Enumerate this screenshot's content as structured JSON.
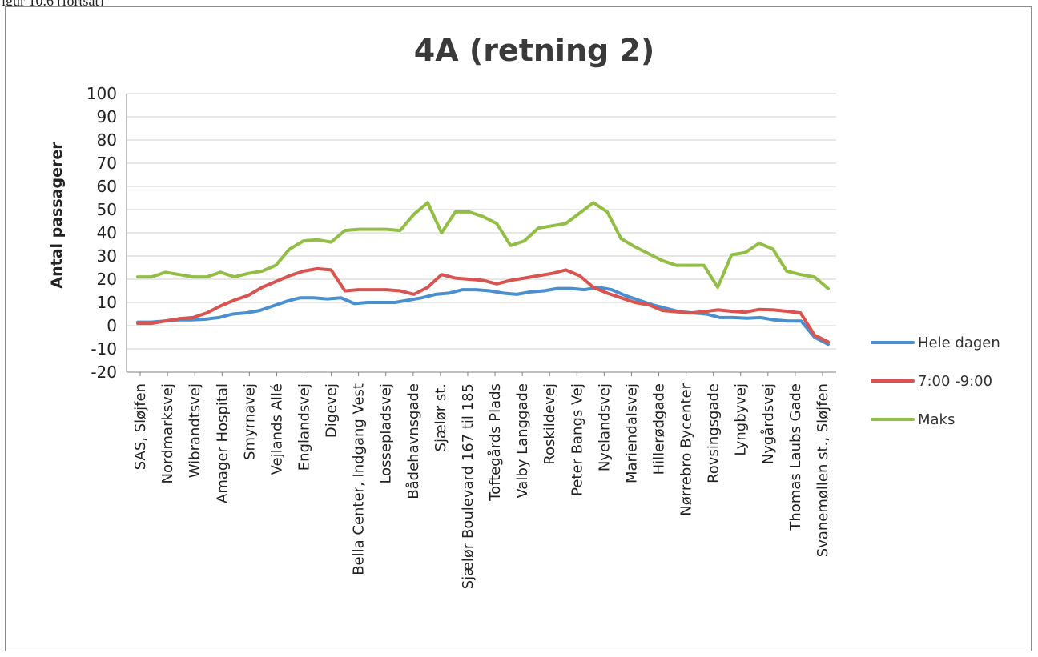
{
  "caption_fragment": "igur 10.6 (fortsat)",
  "chart_data": {
    "type": "line",
    "title": "4A (retning 2)",
    "xlabel": "",
    "ylabel": "Antal passagerer",
    "ylim": [
      -20,
      100
    ],
    "ytick_step": 10,
    "grid": true,
    "legend_position": "right",
    "x_tick_labels": [
      "SAS, Sløjfen",
      "Nordmarksvej",
      "Wibrandtsvej",
      "Amager Hospital",
      "Smyrnavej",
      "Vejlands Allé",
      "Englandsvej",
      "Digevej",
      "Bella Center,  Indgang Vest",
      "Lossepladsvej",
      "Bådehavnsgade",
      "Sjælør st.",
      "Sjælør Boulevard 167 til 185",
      "Toftegårds Plads",
      "Valby Langgade",
      "Roskildevej",
      "Peter Bangs Vej",
      "Nyelandsvej",
      "Mariendalsvej",
      "Hillerødgade",
      "Nørrebro Bycenter",
      "Rovsingsgade",
      "Lyngbyvej",
      "Nygårdsvej",
      "Thomas Laubs Gade",
      "Svanemøllen st., Sløjfen"
    ],
    "series": [
      {
        "name": "Hele dagen",
        "color": "#4a8fd0",
        "values": [
          1.5,
          1.5,
          2,
          2.5,
          2.5,
          2.8,
          3.5,
          5,
          5.5,
          6.5,
          8.5,
          10.5,
          12,
          12,
          11.5,
          12,
          9.5,
          10,
          10,
          10,
          11,
          12,
          13.5,
          14,
          15.5,
          15.5,
          15,
          14,
          13.5,
          14.5,
          15,
          16,
          16,
          15.5,
          16.5,
          15.5,
          13,
          11,
          9,
          7.5,
          6,
          5.5,
          5,
          3.5,
          3.5,
          3.2,
          3.5,
          2.5,
          2,
          2,
          -5,
          -8
        ]
      },
      {
        "name": "7:00 -9:00",
        "color": "#d9534f",
        "values": [
          1,
          1,
          2,
          3,
          3.5,
          5.5,
          8.5,
          11,
          13,
          16.5,
          19,
          21.5,
          23.5,
          24.5,
          24,
          15,
          15.5,
          15.5,
          15.5,
          15,
          13.5,
          16.5,
          22,
          20.5,
          20,
          19.5,
          18,
          19.5,
          20.5,
          21.5,
          22.5,
          24,
          21.5,
          16.5,
          14,
          12,
          10,
          9,
          6.5,
          6,
          5.5,
          6,
          6.8,
          6.2,
          5.8,
          7,
          6.8,
          6.2,
          5.5,
          -4,
          -7
        ]
      },
      {
        "name": "Maks",
        "color": "#93be45",
        "values": [
          21,
          21,
          23,
          22,
          21,
          21,
          23,
          21,
          22.5,
          23.5,
          26,
          33,
          36.5,
          37,
          36,
          41,
          41.5,
          41.5,
          41.5,
          41,
          48,
          53,
          40,
          49,
          49,
          47,
          44,
          34.5,
          36.5,
          42,
          43,
          44,
          48.5,
          53,
          49,
          37.5,
          34,
          31,
          28,
          26,
          26,
          26,
          16.5,
          30.5,
          31.5,
          35.5,
          33,
          23.5,
          22,
          21,
          16
        ]
      }
    ]
  }
}
